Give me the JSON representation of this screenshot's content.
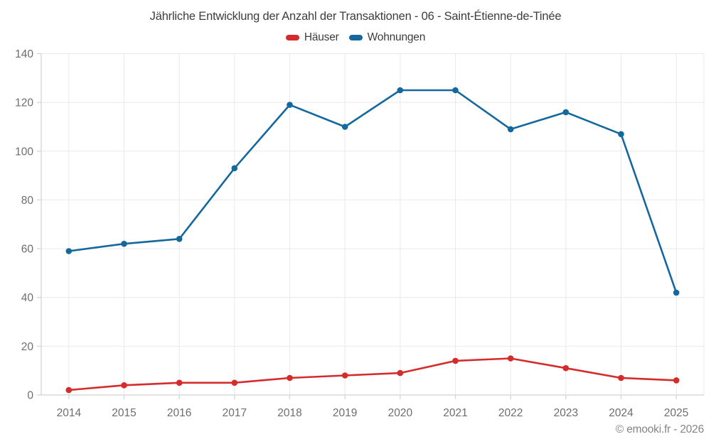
{
  "title": "Jährliche Entwicklung der Anzahl der Transaktionen - 06 - Saint-Étienne-de-Tinée",
  "footer": "© emooki.fr - 2026",
  "chart_data": {
    "type": "line",
    "title": "Jährliche Entwicklung der Anzahl der Transaktionen - 06 - Saint-Étienne-de-Tinée",
    "categories": [
      "2014",
      "2015",
      "2016",
      "2017",
      "2018",
      "2019",
      "2020",
      "2021",
      "2022",
      "2023",
      "2024",
      "2025"
    ],
    "series": [
      {
        "name": "Häuser",
        "color": "#d62b2b",
        "values": [
          2,
          4,
          5,
          5,
          7,
          8,
          9,
          14,
          15,
          11,
          7,
          6
        ]
      },
      {
        "name": "Wohnungen",
        "color": "#14689e",
        "values": [
          59,
          62,
          64,
          93,
          119,
          110,
          125,
          125,
          109,
          116,
          107,
          42
        ]
      }
    ],
    "xlabel": "",
    "ylabel": "",
    "ylim": [
      0,
      140
    ],
    "yticks": [
      0,
      20,
      40,
      60,
      80,
      100,
      120,
      140
    ],
    "grid": true,
    "legend_position": "top-center",
    "colors": {
      "grid_line": "#e9e9e9",
      "axis_line": "#d2d2d2",
      "tick_label": "#6d6d6d"
    }
  }
}
